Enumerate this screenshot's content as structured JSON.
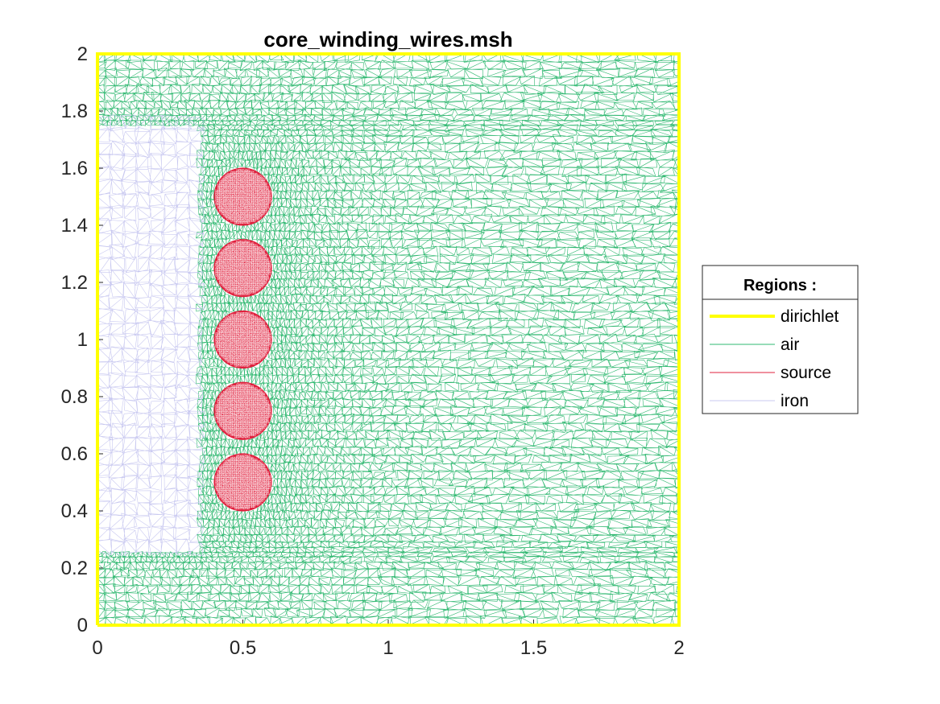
{
  "chart_data": {
    "type": "mesh",
    "title": "core_winding_wires.msh",
    "xlabel": "",
    "ylabel": "",
    "xlim": [
      0,
      2
    ],
    "ylim": [
      0,
      2
    ],
    "xticks": [
      0,
      0.5,
      1,
      1.5,
      2
    ],
    "xtick_labels": [
      "0",
      "0.5",
      "1",
      "1.5",
      "2"
    ],
    "yticks": [
      0,
      0.2,
      0.4,
      0.6,
      0.8,
      1,
      1.2,
      1.4,
      1.6,
      1.8,
      2
    ],
    "ytick_labels": [
      "0",
      "0.2",
      "0.4",
      "0.6",
      "0.8",
      "1",
      "1.2",
      "1.4",
      "1.6",
      "1.8",
      "2"
    ],
    "legend": {
      "title": "Regions :",
      "placement": "outside-right",
      "entries": [
        "dirichlet",
        "air",
        "source",
        "iron"
      ]
    },
    "regions": [
      {
        "name": "dirichlet",
        "color": "#ffff00",
        "kind": "boundary",
        "polyline": [
          [
            0,
            0
          ],
          [
            2,
            0
          ],
          [
            2,
            2
          ],
          [
            0,
            2
          ],
          [
            0,
            0
          ]
        ]
      },
      {
        "name": "air",
        "color": "#2fb870",
        "kind": "mesh",
        "x_range": [
          0,
          2
        ],
        "y_range": [
          0,
          2
        ]
      },
      {
        "name": "iron",
        "color": "#c8c8f0",
        "kind": "mesh",
        "x_range": [
          0,
          0.35
        ],
        "y_range": [
          0.25,
          1.75
        ]
      },
      {
        "name": "source",
        "color": "#e0213e",
        "kind": "mesh",
        "radius": 0.1,
        "centers": [
          [
            0.5,
            0.5
          ],
          [
            0.5,
            0.75
          ],
          [
            0.5,
            1.0
          ],
          [
            0.5,
            1.25
          ],
          [
            0.5,
            1.5
          ]
        ]
      }
    ]
  }
}
